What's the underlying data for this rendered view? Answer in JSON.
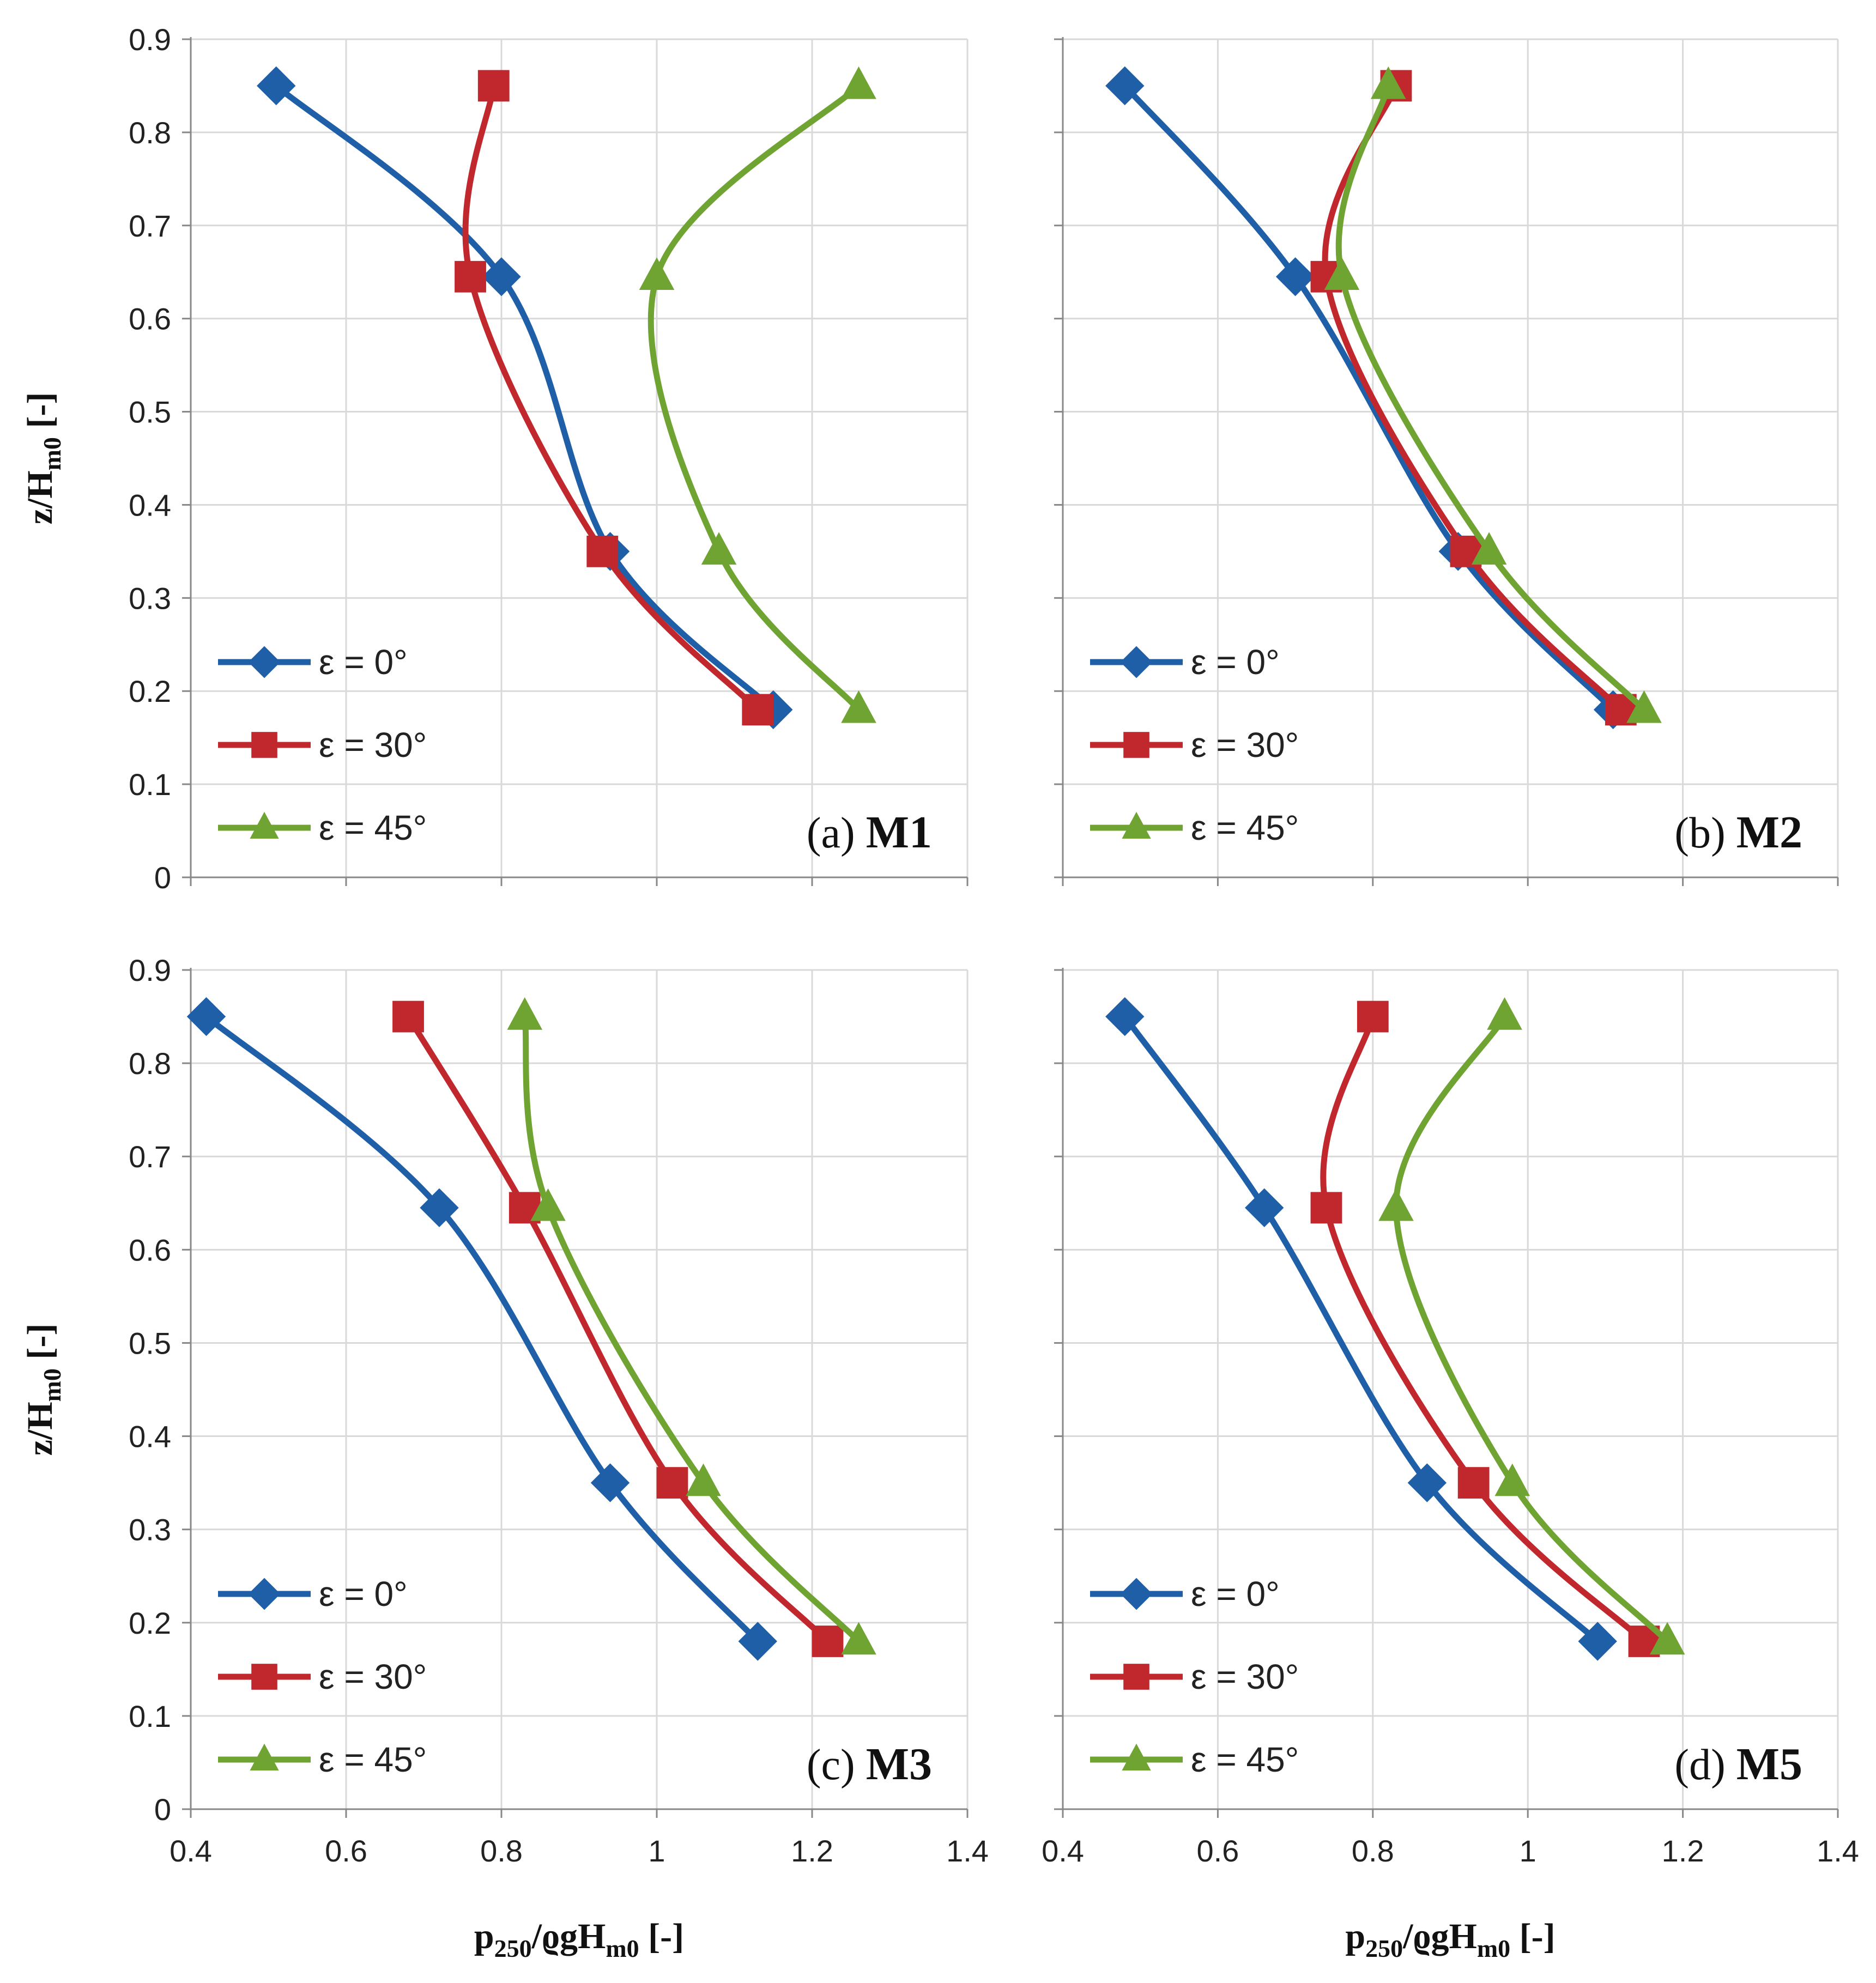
{
  "colors": {
    "eps0": "#1f5fa8",
    "eps30": "#c0282e",
    "eps45": "#6fa332",
    "grid": "#d9d9d9",
    "axis": "#888888"
  },
  "axes": {
    "ylabel": {
      "main": "z/H",
      "sub": "m0",
      "tail": " [-]"
    },
    "xlabel": {
      "p": "p",
      "p_sub": "250",
      "mid": "/ϱgH",
      "h_sub": "m0",
      "tail": " [-]"
    },
    "xticks": [
      "0.4",
      "0.6",
      "0.8",
      "1",
      "1.2",
      "1.4"
    ],
    "yticks": [
      "0",
      "0.1",
      "0.2",
      "0.3",
      "0.4",
      "0.5",
      "0.6",
      "0.7",
      "0.8",
      "0.9"
    ]
  },
  "legend": [
    "ε = 0°",
    "ε = 30°",
    "ε = 45°"
  ],
  "chart_data": [
    {
      "type": "line",
      "panel": "(a)",
      "title": "M1",
      "xlim": [
        0.4,
        1.4
      ],
      "ylim": [
        0,
        0.9
      ],
      "series": [
        {
          "name": "ε = 0°",
          "marker": "diamond",
          "x": [
            0.51,
            0.8,
            0.94,
            1.15
          ],
          "y": [
            0.85,
            0.645,
            0.35,
            0.18
          ]
        },
        {
          "name": "ε = 30°",
          "marker": "square",
          "x": [
            0.79,
            0.76,
            0.93,
            1.13
          ],
          "y": [
            0.85,
            0.645,
            0.35,
            0.18
          ]
        },
        {
          "name": "ε = 45°",
          "marker": "triangle",
          "x": [
            1.26,
            1.0,
            1.08,
            1.26
          ],
          "y": [
            0.85,
            0.645,
            0.35,
            0.18
          ]
        }
      ]
    },
    {
      "type": "line",
      "panel": "(b)",
      "title": "M2",
      "xlim": [
        0.4,
        1.4
      ],
      "ylim": [
        0,
        0.9
      ],
      "series": [
        {
          "name": "ε = 0°",
          "marker": "diamond",
          "x": [
            0.48,
            0.7,
            0.91,
            1.11
          ],
          "y": [
            0.85,
            0.645,
            0.35,
            0.18
          ]
        },
        {
          "name": "ε = 30°",
          "marker": "square",
          "x": [
            0.83,
            0.74,
            0.92,
            1.12
          ],
          "y": [
            0.85,
            0.645,
            0.35,
            0.18
          ]
        },
        {
          "name": "ε = 45°",
          "marker": "triangle",
          "x": [
            0.82,
            0.76,
            0.95,
            1.15
          ],
          "y": [
            0.85,
            0.645,
            0.35,
            0.18
          ]
        }
      ]
    },
    {
      "type": "line",
      "panel": "(c)",
      "title": "M3",
      "xlim": [
        0.4,
        1.4
      ],
      "ylim": [
        0,
        0.9
      ],
      "series": [
        {
          "name": "ε = 0°",
          "marker": "diamond",
          "x": [
            0.42,
            0.72,
            0.94,
            1.13
          ],
          "y": [
            0.85,
            0.645,
            0.35,
            0.18
          ]
        },
        {
          "name": "ε = 30°",
          "marker": "square",
          "x": [
            0.68,
            0.83,
            1.02,
            1.22
          ],
          "y": [
            0.85,
            0.645,
            0.35,
            0.18
          ]
        },
        {
          "name": "ε = 45°",
          "marker": "triangle",
          "x": [
            0.83,
            0.86,
            1.06,
            1.26
          ],
          "y": [
            0.85,
            0.645,
            0.35,
            0.18
          ]
        }
      ]
    },
    {
      "type": "line",
      "panel": "(d)",
      "title": "M5",
      "xlim": [
        0.4,
        1.4
      ],
      "ylim": [
        0,
        0.9
      ],
      "series": [
        {
          "name": "ε = 0°",
          "marker": "diamond",
          "x": [
            0.48,
            0.66,
            0.87,
            1.09
          ],
          "y": [
            0.85,
            0.645,
            0.35,
            0.18
          ]
        },
        {
          "name": "ε = 30°",
          "marker": "square",
          "x": [
            0.8,
            0.74,
            0.93,
            1.15
          ],
          "y": [
            0.85,
            0.645,
            0.35,
            0.18
          ]
        },
        {
          "name": "ε = 45°",
          "marker": "triangle",
          "x": [
            0.97,
            0.83,
            0.98,
            1.18
          ],
          "y": [
            0.85,
            0.645,
            0.35,
            0.18
          ]
        }
      ]
    }
  ]
}
